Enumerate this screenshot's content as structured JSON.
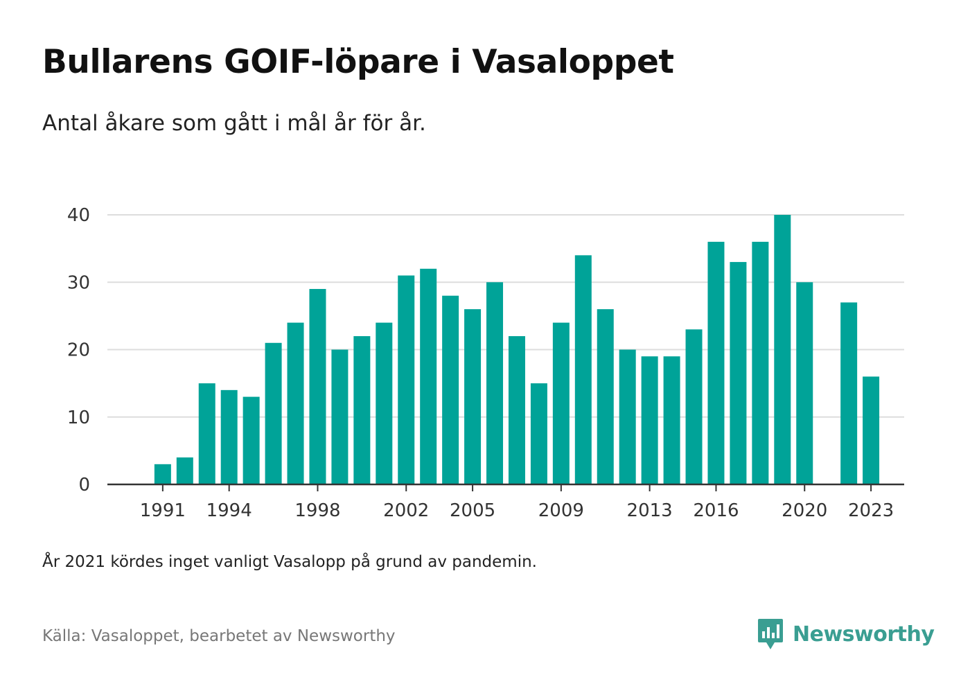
{
  "header": {
    "title": "Bullarens GOIF-löpare i Vasaloppet",
    "subtitle": "Antal åkare som gått i mål år för år."
  },
  "footer": {
    "note": "År 2021 kördes inget vanligt Vasalopp på grund av pandemin.",
    "source": "Källa: Vasaloppet, bearbetet av Newsworthy",
    "brand_name": "Newsworthy",
    "brand_icon": "newsworthy-logo-icon"
  },
  "colors": {
    "bar": "#00a398",
    "grid": "#dddddd",
    "axis": "#333333",
    "brand": "#3a9e92"
  },
  "chart_data": {
    "type": "bar",
    "categories": [
      1989,
      1990,
      1991,
      1992,
      1993,
      1994,
      1995,
      1996,
      1997,
      1998,
      1999,
      2000,
      2001,
      2002,
      2003,
      2004,
      2005,
      2006,
      2007,
      2008,
      2009,
      2010,
      2011,
      2012,
      2013,
      2014,
      2015,
      2016,
      2017,
      2018,
      2019,
      2020,
      2021,
      2022,
      2023,
      2024
    ],
    "values": [
      null,
      null,
      3,
      4,
      15,
      14,
      13,
      21,
      24,
      29,
      20,
      22,
      24,
      31,
      32,
      28,
      26,
      30,
      22,
      15,
      24,
      34,
      26,
      20,
      19,
      19,
      23,
      36,
      33,
      36,
      40,
      30,
      null,
      27,
      16,
      null
    ],
    "xticks": [
      1991,
      1994,
      1998,
      2002,
      2005,
      2009,
      2013,
      2016,
      2020,
      2023
    ],
    "yticks": [
      0,
      10,
      20,
      30,
      40
    ],
    "ylim": [
      0,
      40
    ],
    "title": "Bullarens GOIF-löpare i Vasaloppet",
    "subtitle": "Antal åkare som gått i mål år för år.",
    "xlabel": "",
    "ylabel": "",
    "grid": true
  }
}
